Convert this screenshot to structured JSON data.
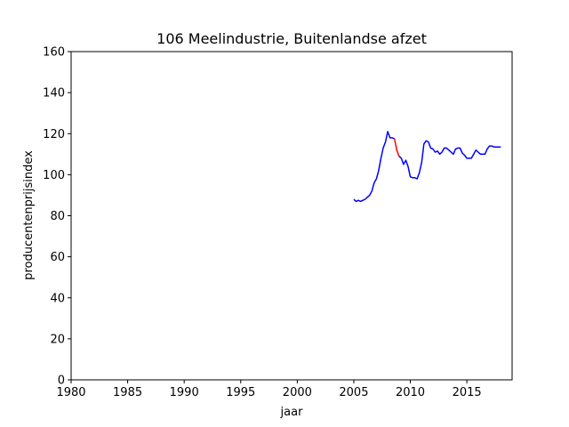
{
  "chart_data": {
    "type": "line",
    "title": "106 Meelindustrie, Buitenlandse afzet",
    "xlabel": "jaar",
    "ylabel": "producentenprijsindex",
    "xlim": [
      1980,
      2019
    ],
    "ylim": [
      0,
      160
    ],
    "xticks": [
      1980,
      1985,
      1990,
      1995,
      2000,
      2005,
      2010,
      2015
    ],
    "yticks": [
      0,
      20,
      40,
      60,
      80,
      100,
      120,
      140,
      160
    ],
    "grid": false,
    "series": [
      {
        "color": "#0000ff",
        "segments": [
          {
            "x": [
              2005.0,
              2005.2,
              2005.4,
              2005.6,
              2005.8,
              2006.0,
              2006.2,
              2006.4,
              2006.6,
              2006.8,
              2007.0,
              2007.2,
              2007.4,
              2007.6,
              2007.8,
              2008.0,
              2008.2,
              2008.4,
              2008.6
            ],
            "y": [
              88,
              87,
              87.5,
              87,
              87.5,
              88,
              89,
              90,
              92,
              96,
              98,
              102,
              108,
              113,
              116,
              121,
              118,
              118,
              117.5
            ]
          },
          {
            "x": [
              2009.0,
              2009.2,
              2009.4,
              2009.6,
              2009.8,
              2010.0,
              2010.2,
              2010.4,
              2010.6,
              2010.8,
              2011.0,
              2011.2,
              2011.4,
              2011.6,
              2011.8,
              2012.0,
              2012.2,
              2012.4,
              2012.6,
              2012.8,
              2013.0,
              2013.2,
              2013.4,
              2013.6,
              2013.8,
              2014.0,
              2014.2,
              2014.4,
              2014.6,
              2014.8,
              2015.0,
              2015.2,
              2015.4,
              2015.6,
              2015.8,
              2016.0,
              2016.2,
              2016.4,
              2016.6,
              2016.8,
              2017.0,
              2017.2,
              2017.4,
              2017.6,
              2017.8,
              2018.0
            ],
            "y": [
              109,
              108,
              105,
              107,
              104,
              99,
              98.5,
              98.5,
              98,
              101,
              106,
              115,
              116.5,
              116,
              113,
              112.5,
              111,
              111.5,
              110,
              111,
              113,
              113,
              112,
              111,
              110,
              112.5,
              113,
              113,
              110.5,
              109.5,
              108,
              108,
              108,
              110,
              112,
              111,
              110,
              110,
              110,
              112.5,
              114,
              114,
              113.5,
              113.5,
              113.5,
              113.5
            ]
          }
        ]
      },
      {
        "color": "#ff0000",
        "segments": [
          {
            "x": [
              2008.6,
              2008.8,
              2009.0
            ],
            "y": [
              117.5,
              112,
              109
            ]
          }
        ]
      }
    ]
  }
}
